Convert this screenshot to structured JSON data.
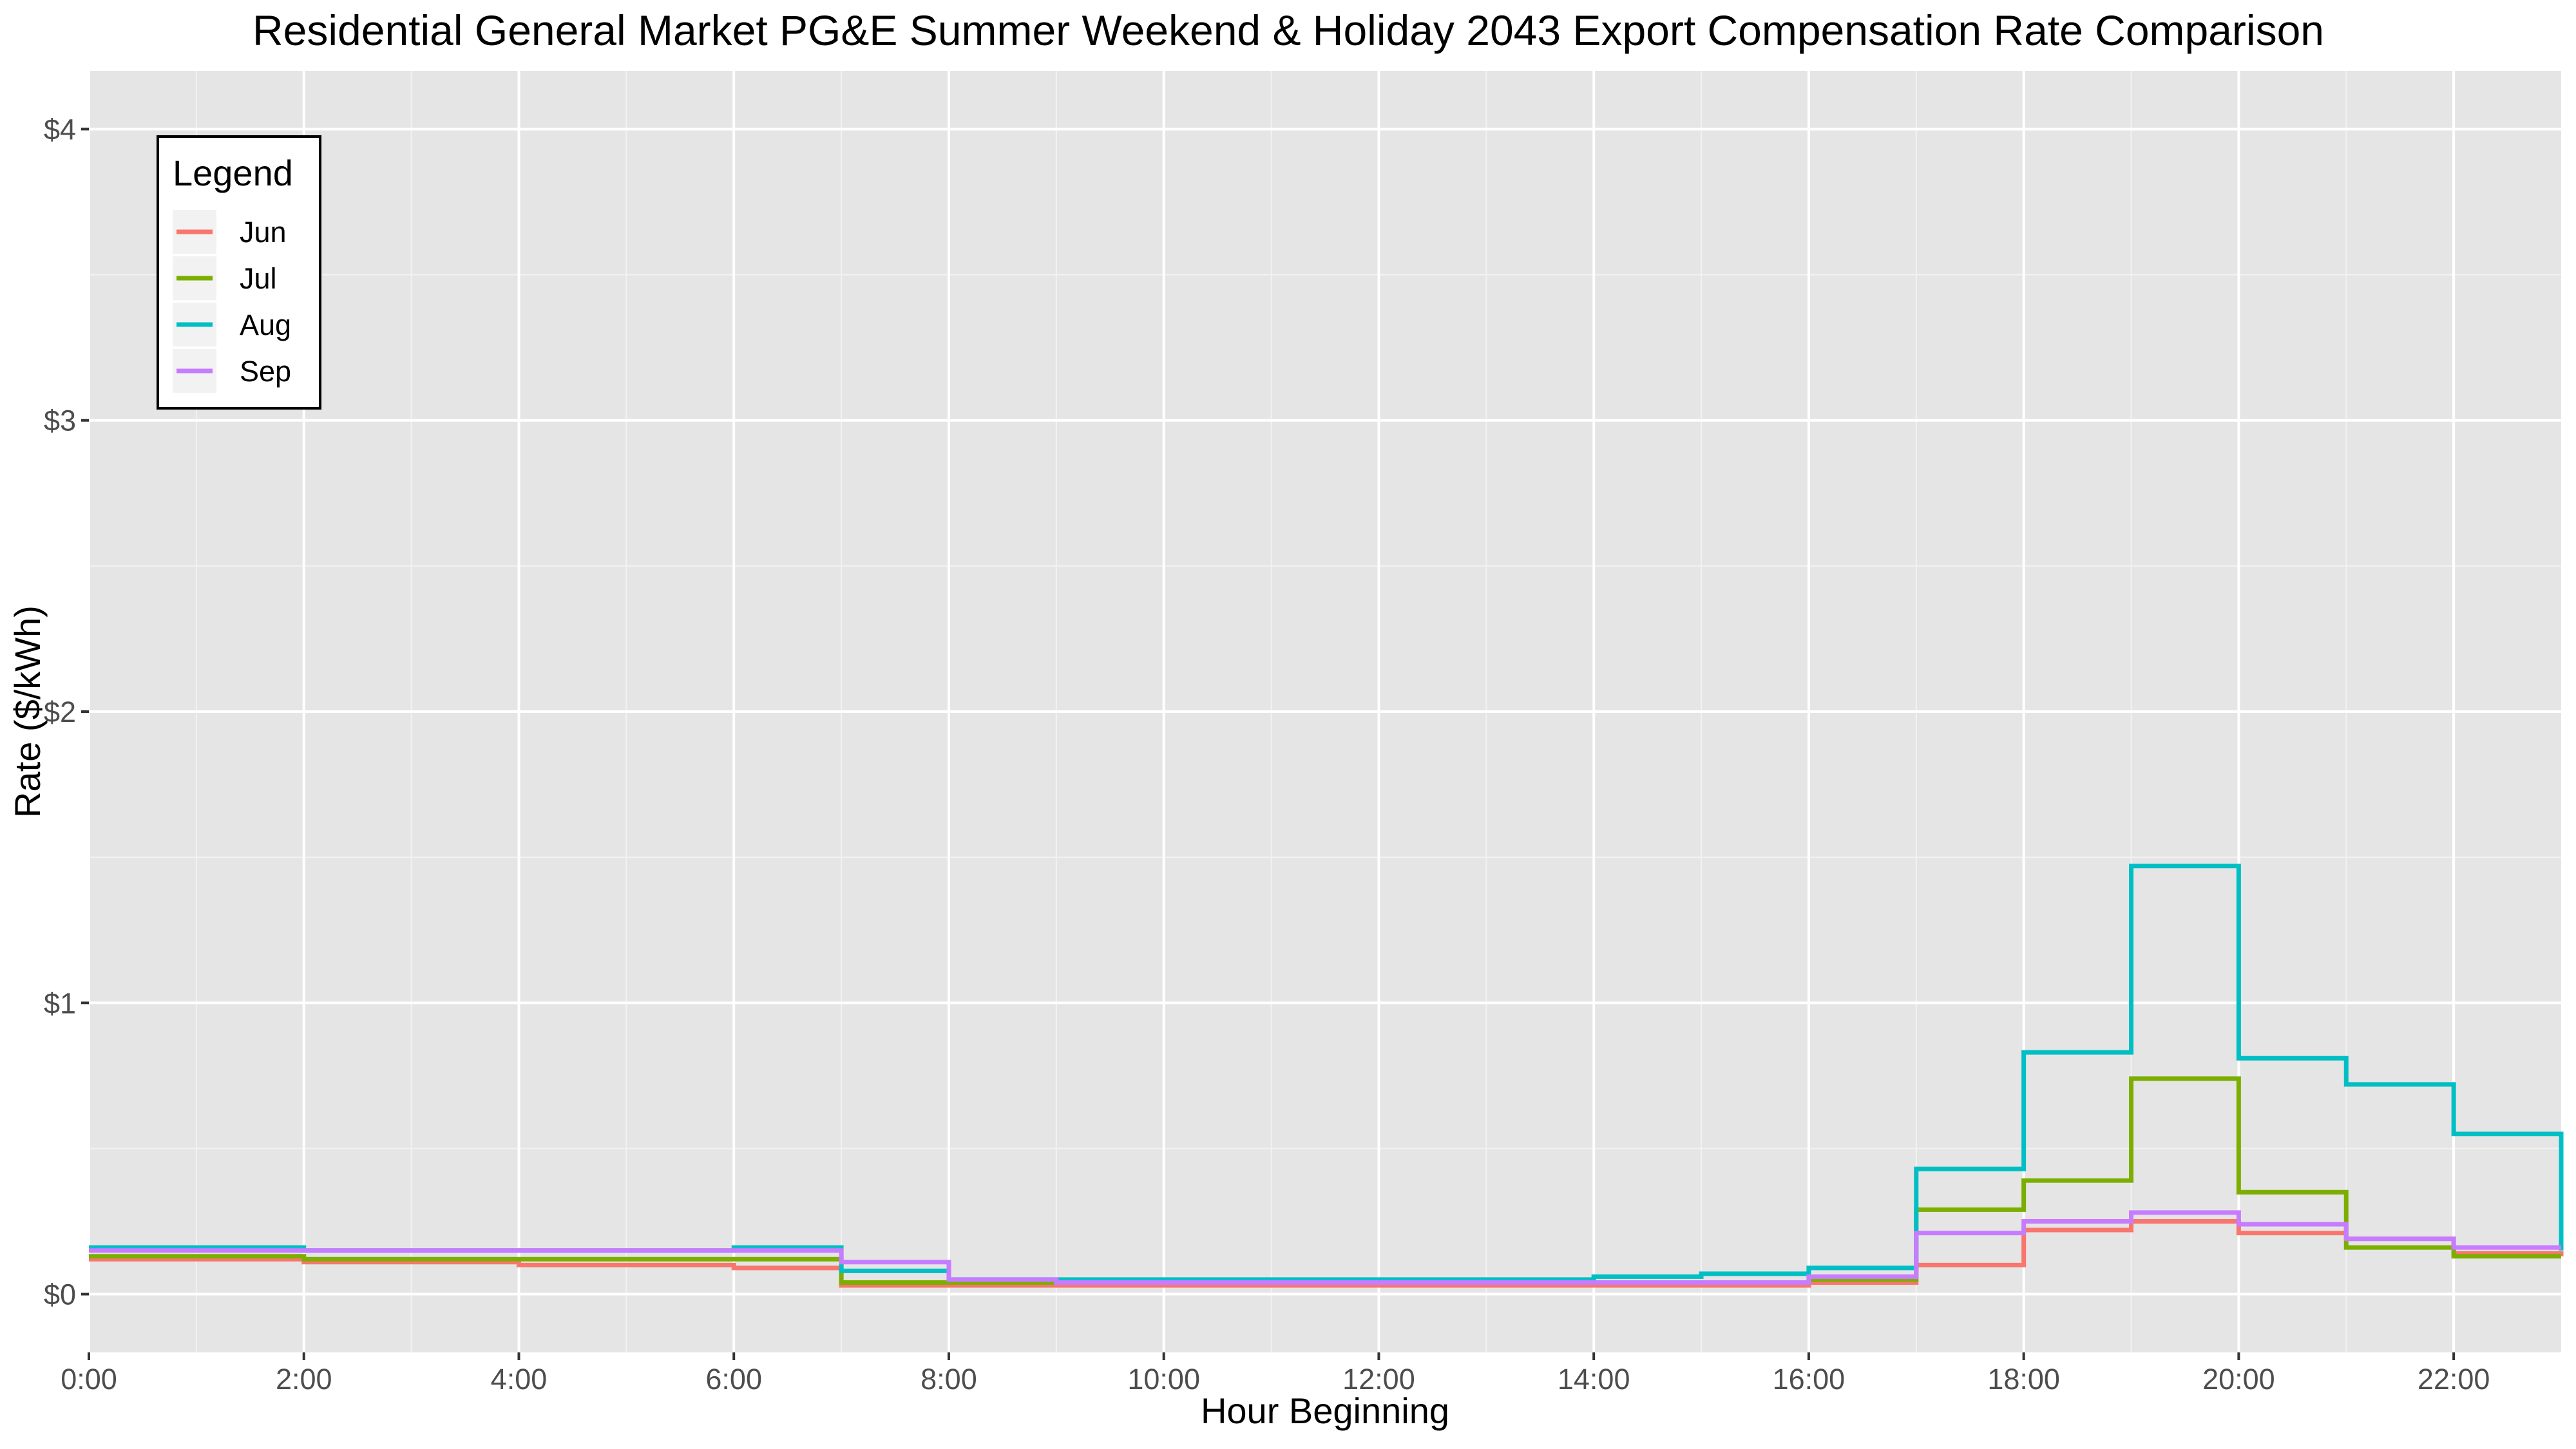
{
  "chart_data": {
    "type": "line",
    "step": true,
    "title": "Residential General Market PG&E Summer Weekend & Holiday 2043 Export Compensation Rate Comparison",
    "xlabel": "Hour Beginning",
    "ylabel": "Rate ($/kWh)",
    "xlim": [
      0,
      23
    ],
    "ylim": [
      -0.2,
      4.2
    ],
    "x_ticks": [
      {
        "value": 0,
        "label": "0:00"
      },
      {
        "value": 2,
        "label": "2:00"
      },
      {
        "value": 4,
        "label": "4:00"
      },
      {
        "value": 6,
        "label": "6:00"
      },
      {
        "value": 8,
        "label": "8:00"
      },
      {
        "value": 10,
        "label": "10:00"
      },
      {
        "value": 12,
        "label": "12:00"
      },
      {
        "value": 14,
        "label": "14:00"
      },
      {
        "value": 16,
        "label": "16:00"
      },
      {
        "value": 18,
        "label": "18:00"
      },
      {
        "value": 20,
        "label": "20:00"
      },
      {
        "value": 22,
        "label": "22:00"
      }
    ],
    "y_ticks": [
      {
        "value": 0,
        "label": "$0"
      },
      {
        "value": 1,
        "label": "$1"
      },
      {
        "value": 2,
        "label": "$2"
      },
      {
        "value": 3,
        "label": "$3"
      },
      {
        "value": 4,
        "label": "$4"
      }
    ],
    "grid": true,
    "panel_background": "#e5e5e5",
    "legend": {
      "title": "Legend",
      "position": "top-left"
    },
    "x": [
      0,
      1,
      2,
      3,
      4,
      5,
      6,
      7,
      8,
      9,
      10,
      11,
      12,
      13,
      14,
      15,
      16,
      17,
      18,
      19,
      20,
      21,
      22,
      23
    ],
    "series": [
      {
        "name": "Jun",
        "color": "#f8766d",
        "values": [
          0.12,
          0.12,
          0.11,
          0.11,
          0.1,
          0.1,
          0.09,
          0.03,
          0.03,
          0.03,
          0.03,
          0.03,
          0.03,
          0.03,
          0.03,
          0.03,
          0.04,
          0.1,
          0.22,
          0.25,
          0.21,
          0.19,
          0.14,
          0.13
        ]
      },
      {
        "name": "Jul",
        "color": "#7cae00",
        "values": [
          0.13,
          0.13,
          0.12,
          0.12,
          0.12,
          0.12,
          0.12,
          0.04,
          0.04,
          0.04,
          0.04,
          0.04,
          0.04,
          0.04,
          0.04,
          0.04,
          0.05,
          0.29,
          0.39,
          0.74,
          0.35,
          0.16,
          0.13,
          0.13
        ]
      },
      {
        "name": "Aug",
        "color": "#00bfc4",
        "values": [
          0.16,
          0.16,
          0.15,
          0.15,
          0.15,
          0.15,
          0.16,
          0.08,
          0.05,
          0.05,
          0.05,
          0.05,
          0.05,
          0.05,
          0.06,
          0.07,
          0.09,
          0.43,
          0.83,
          1.47,
          0.81,
          0.72,
          0.55,
          0.15
        ]
      },
      {
        "name": "Sep",
        "color": "#c77cff",
        "values": [
          0.15,
          0.15,
          0.15,
          0.15,
          0.15,
          0.15,
          0.15,
          0.11,
          0.05,
          0.04,
          0.04,
          0.04,
          0.04,
          0.04,
          0.04,
          0.04,
          0.06,
          0.21,
          0.25,
          0.28,
          0.24,
          0.19,
          0.16,
          0.16
        ]
      }
    ]
  }
}
